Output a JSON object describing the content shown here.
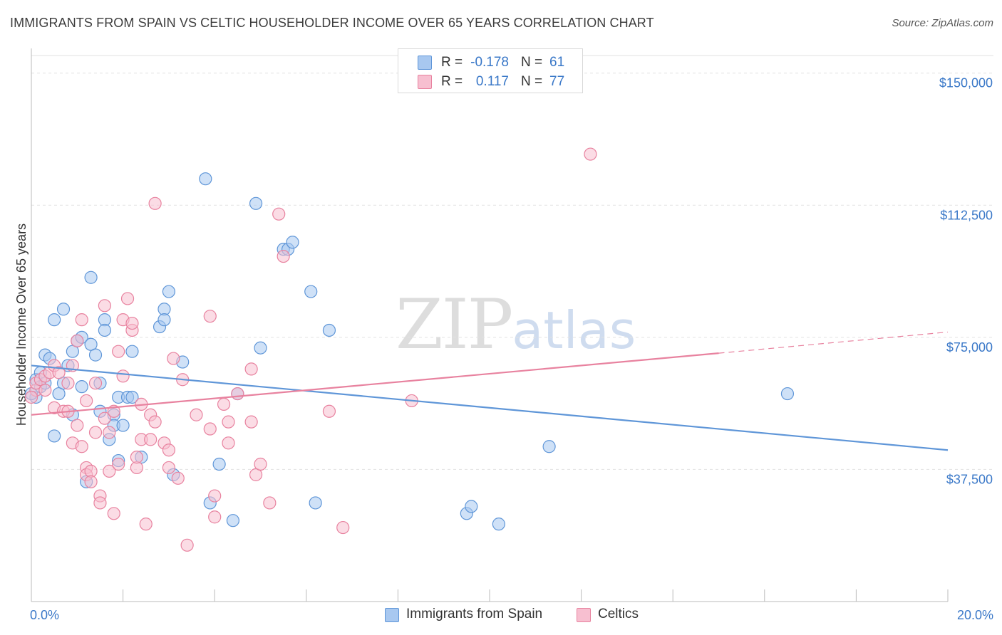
{
  "title": "IMMIGRANTS FROM SPAIN VS CELTIC HOUSEHOLDER INCOME OVER 65 YEARS CORRELATION CHART",
  "source": "Source: ZipAtlas.com",
  "watermark": {
    "zip": "ZIP",
    "atlas": "atlas"
  },
  "legend": {
    "rows": [
      {
        "r_label": "R =",
        "r_value": "-0.178",
        "n_label": "N =",
        "n_value": "61",
        "color": "#a8c8f0",
        "border": "#5f96d8"
      },
      {
        "r_label": "R =",
        "r_value": "0.117",
        "n_label": "N =",
        "n_value": "77",
        "color": "#f7bfd0",
        "border": "#e8829f"
      }
    ]
  },
  "bottom_legend": [
    {
      "label": "Immigrants from Spain",
      "color": "#a8c8f0",
      "border": "#5f96d8"
    },
    {
      "label": "Celtics",
      "color": "#f7bfd0",
      "border": "#e8829f"
    }
  ],
  "chart_data": {
    "type": "scatter",
    "title": "IMMIGRANTS FROM SPAIN VS CELTIC HOUSEHOLDER INCOME OVER 65 YEARS CORRELATION CHART",
    "xlabel": "",
    "ylabel": "Householder Income Over 65 years",
    "xlim": [
      0,
      20
    ],
    "ylim": [
      0,
      155000
    ],
    "x_tick_labels": [
      "0.0%",
      "20.0%"
    ],
    "y_ticks": [
      37500,
      75000,
      112500,
      150000
    ],
    "y_tick_labels": [
      "$37,500",
      "$75,000",
      "$112,500",
      "$150,000"
    ],
    "grid": true,
    "series": [
      {
        "name": "Immigrants from Spain",
        "color": "#5f96d8",
        "fill": "#a8c8f0",
        "trend": {
          "x": [
            0,
            20
          ],
          "y": [
            67000,
            43000
          ],
          "dashed_from": null
        },
        "points": [
          [
            0.1,
            63000
          ],
          [
            0.1,
            58000
          ],
          [
            0.2,
            61000
          ],
          [
            0.2,
            65000
          ],
          [
            0.3,
            62000
          ],
          [
            0.3,
            70000
          ],
          [
            0.4,
            69000
          ],
          [
            0.5,
            80000
          ],
          [
            0.5,
            47000
          ],
          [
            0.6,
            59000
          ],
          [
            0.7,
            83000
          ],
          [
            0.7,
            62000
          ],
          [
            0.8,
            67000
          ],
          [
            0.9,
            71000
          ],
          [
            0.9,
            53000
          ],
          [
            1.0,
            74000
          ],
          [
            1.1,
            75000
          ],
          [
            1.1,
            61000
          ],
          [
            1.2,
            34000
          ],
          [
            1.3,
            92000
          ],
          [
            1.3,
            73000
          ],
          [
            1.4,
            70000
          ],
          [
            1.5,
            62000
          ],
          [
            1.5,
            54000
          ],
          [
            1.6,
            80000
          ],
          [
            1.6,
            77000
          ],
          [
            1.7,
            46000
          ],
          [
            1.8,
            53000
          ],
          [
            1.8,
            50000
          ],
          [
            1.9,
            40000
          ],
          [
            1.9,
            58000
          ],
          [
            2.0,
            50000
          ],
          [
            2.1,
            58000
          ],
          [
            2.2,
            58000
          ],
          [
            2.2,
            71000
          ],
          [
            2.4,
            41000
          ],
          [
            2.8,
            78000
          ],
          [
            2.9,
            83000
          ],
          [
            2.9,
            80000
          ],
          [
            3.0,
            88000
          ],
          [
            3.1,
            36000
          ],
          [
            3.3,
            68000
          ],
          [
            3.8,
            120000
          ],
          [
            3.9,
            28000
          ],
          [
            4.1,
            39000
          ],
          [
            4.4,
            23000
          ],
          [
            4.5,
            59000
          ],
          [
            4.9,
            113000
          ],
          [
            5.0,
            72000
          ],
          [
            5.5,
            100000
          ],
          [
            5.6,
            100000
          ],
          [
            5.7,
            102000
          ],
          [
            6.1,
            88000
          ],
          [
            6.2,
            28000
          ],
          [
            6.5,
            77000
          ],
          [
            9.5,
            25000
          ],
          [
            9.6,
            27000
          ],
          [
            10.2,
            22000
          ],
          [
            11.3,
            44000
          ],
          [
            16.5,
            59000
          ],
          [
            0.0,
            59000
          ]
        ]
      },
      {
        "name": "Celtics",
        "color": "#e8829f",
        "fill": "#f7bfd0",
        "trend": {
          "x": [
            0,
            15
          ],
          "y": [
            53000,
            70500
          ],
          "dashed_to": [
            20,
            76500
          ]
        },
        "points": [
          [
            0.1,
            60000
          ],
          [
            0.1,
            62000
          ],
          [
            0.2,
            63000
          ],
          [
            0.3,
            64000
          ],
          [
            0.3,
            60000
          ],
          [
            0.4,
            65000
          ],
          [
            0.5,
            67000
          ],
          [
            0.5,
            55000
          ],
          [
            0.6,
            65000
          ],
          [
            0.7,
            54000
          ],
          [
            0.8,
            62000
          ],
          [
            0.8,
            54000
          ],
          [
            0.9,
            45000
          ],
          [
            0.9,
            67000
          ],
          [
            1.0,
            74000
          ],
          [
            1.0,
            50000
          ],
          [
            1.1,
            44000
          ],
          [
            1.1,
            80000
          ],
          [
            1.2,
            38000
          ],
          [
            1.2,
            36000
          ],
          [
            1.2,
            57000
          ],
          [
            1.3,
            37000
          ],
          [
            1.3,
            34000
          ],
          [
            1.4,
            62000
          ],
          [
            1.4,
            48000
          ],
          [
            1.5,
            30000
          ],
          [
            1.5,
            28000
          ],
          [
            1.6,
            52000
          ],
          [
            1.6,
            84000
          ],
          [
            1.7,
            48000
          ],
          [
            1.7,
            37000
          ],
          [
            1.8,
            25000
          ],
          [
            1.8,
            54000
          ],
          [
            1.9,
            71000
          ],
          [
            1.9,
            39000
          ],
          [
            2.0,
            80000
          ],
          [
            2.0,
            64000
          ],
          [
            2.1,
            86000
          ],
          [
            2.2,
            77000
          ],
          [
            2.2,
            79000
          ],
          [
            2.3,
            38000
          ],
          [
            2.3,
            41000
          ],
          [
            2.4,
            56000
          ],
          [
            2.4,
            46000
          ],
          [
            2.5,
            22000
          ],
          [
            2.6,
            46000
          ],
          [
            2.6,
            53000
          ],
          [
            2.7,
            113000
          ],
          [
            2.7,
            51000
          ],
          [
            2.9,
            45000
          ],
          [
            3.0,
            43000
          ],
          [
            3.0,
            38000
          ],
          [
            3.1,
            69000
          ],
          [
            3.2,
            35000
          ],
          [
            3.3,
            63000
          ],
          [
            3.4,
            16000
          ],
          [
            3.6,
            53000
          ],
          [
            3.9,
            49000
          ],
          [
            3.9,
            81000
          ],
          [
            4.0,
            30000
          ],
          [
            4.0,
            24000
          ],
          [
            4.2,
            56000
          ],
          [
            4.3,
            51000
          ],
          [
            4.3,
            45000
          ],
          [
            4.5,
            59000
          ],
          [
            4.8,
            51000
          ],
          [
            4.8,
            66000
          ],
          [
            4.9,
            36000
          ],
          [
            5.0,
            39000
          ],
          [
            5.2,
            28000
          ],
          [
            5.4,
            110000
          ],
          [
            5.5,
            98000
          ],
          [
            6.5,
            54000
          ],
          [
            6.8,
            21000
          ],
          [
            8.3,
            57000
          ],
          [
            12.2,
            127000
          ],
          [
            0.0,
            58000
          ]
        ]
      }
    ]
  }
}
